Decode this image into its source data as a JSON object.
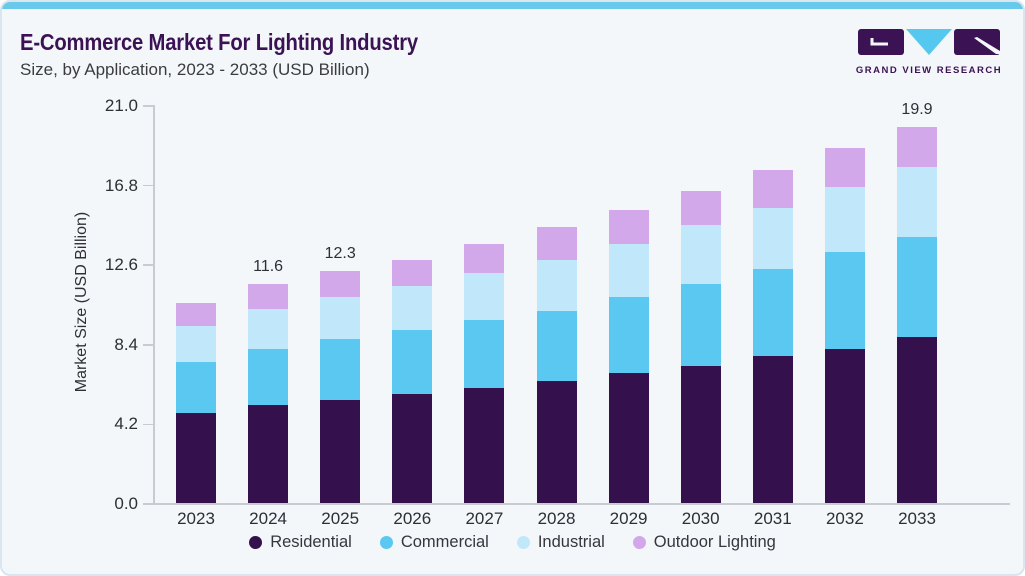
{
  "page": {
    "title": "E-Commerce Market For Lighting Industry",
    "subtitle": "Size, by Application, 2023 - 2033 (USD Billion)"
  },
  "branding": {
    "logo_text": "GRAND VIEW RESEARCH"
  },
  "chart_data": {
    "type": "bar",
    "stacked": true,
    "title": "E-Commerce Market For Lighting Industry Size, by Application, 2023 - 2033 (USD Billion)",
    "ylabel": "Market Size (USD Billion)",
    "ylim": [
      0,
      21
    ],
    "yticks": [
      "0.0",
      "4.2",
      "8.4",
      "12.6",
      "16.8",
      "21.0"
    ],
    "grid": false,
    "legend_position": "bottom",
    "categories": [
      "2023",
      "2024",
      "2025",
      "2026",
      "2027",
      "2028",
      "2029",
      "2030",
      "2031",
      "2032",
      "2033"
    ],
    "series": [
      {
        "name": "Residential",
        "color": "#34114D",
        "values": [
          4.8,
          5.2,
          5.5,
          5.8,
          6.1,
          6.5,
          6.9,
          7.3,
          7.8,
          8.2,
          8.8
        ]
      },
      {
        "name": "Commercial",
        "color": "#5BC8F2",
        "values": [
          2.7,
          3.0,
          3.2,
          3.4,
          3.6,
          3.7,
          4.0,
          4.3,
          4.6,
          5.1,
          5.3
        ]
      },
      {
        "name": "Industrial",
        "color": "#C0E7FA",
        "values": [
          1.9,
          2.1,
          2.2,
          2.3,
          2.5,
          2.7,
          2.8,
          3.1,
          3.2,
          3.4,
          3.7
        ]
      },
      {
        "name": "Outdoor Lighting",
        "color": "#D2A8EA",
        "values": [
          1.2,
          1.3,
          1.4,
          1.4,
          1.5,
          1.7,
          1.8,
          1.8,
          2.0,
          2.1,
          2.1
        ]
      }
    ],
    "totals": [
      10.6,
      11.6,
      12.3,
      12.9,
      13.7,
      14.6,
      15.5,
      16.5,
      17.6,
      18.8,
      19.9
    ],
    "bar_labels": {
      "2024": "11.6",
      "2025": "12.3",
      "2033": "19.9"
    }
  },
  "colors": {
    "accent_bar": "#68C9EB",
    "card_background": "#F3F7FA",
    "card_border": "#D9E6EF",
    "title": "#3B1254",
    "subtitle": "#3C3C40",
    "axis_line": "#C6CCD2",
    "tick_text": "#2E2E33",
    "legend_text": "#36363E"
  }
}
